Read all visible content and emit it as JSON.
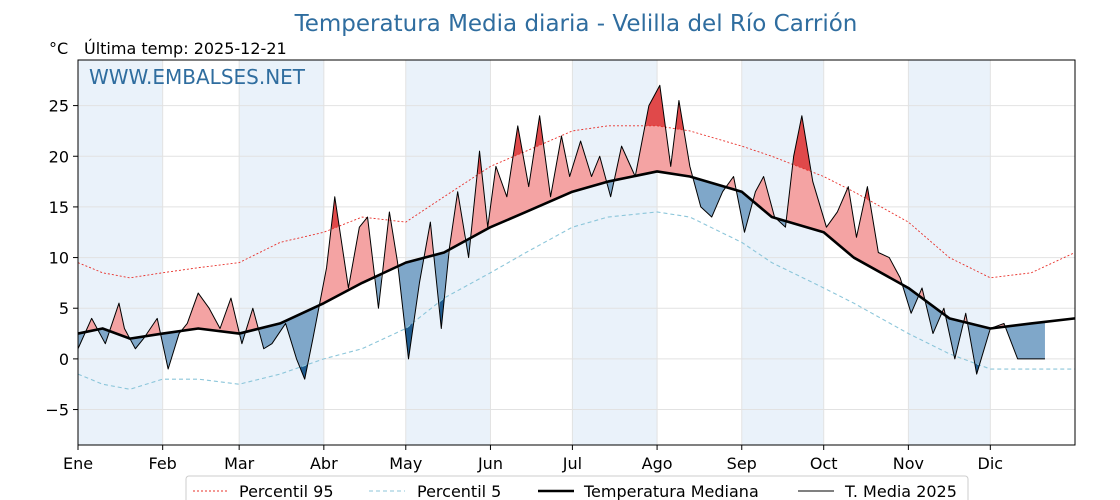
{
  "chart_data": {
    "type": "line",
    "title": "Temperatura Media diaria - Velilla del Río Carrión",
    "subtitle": "Última temp: 2025-12-21",
    "ylabel": "°C",
    "watermark": "WWW.EMBALSES.NET",
    "ylim": [
      -8.5,
      29.5
    ],
    "yticks": [
      -5,
      0,
      5,
      10,
      15,
      20,
      25
    ],
    "ytick_labels": [
      "−5",
      "0",
      "5",
      "10",
      "15",
      "20",
      "25"
    ],
    "xlim": [
      1,
      366
    ],
    "month_ticks": [
      {
        "label": "Ene",
        "day": 1
      },
      {
        "label": "Feb",
        "day": 32
      },
      {
        "label": "Mar",
        "day": 60
      },
      {
        "label": "Abr",
        "day": 91
      },
      {
        "label": "May",
        "day": 121
      },
      {
        "label": "Jun",
        "day": 152
      },
      {
        "label": "Jul",
        "day": 182
      },
      {
        "label": "Ago",
        "day": 213
      },
      {
        "label": "Sep",
        "day": 244
      },
      {
        "label": "Oct",
        "day": 274
      },
      {
        "label": "Nov",
        "day": 305
      },
      {
        "label": "Dic",
        "day": 335
      }
    ],
    "grid": true,
    "legend_position": "bottom",
    "colors": {
      "p95": "#e8302a",
      "p5": "#8cc6da",
      "median": "#000000",
      "current": "#000000",
      "above_fill": "#f4a3a3",
      "above_fill_dark": "#e0494a",
      "below_fill": "#7fa7c9",
      "below_fill_dark": "#1f5b8e",
      "band": "#eaf2fa",
      "title": "#2f6d9f"
    },
    "series": [
      {
        "name": "Percentil 95",
        "key": "p95",
        "style": "dotted",
        "x": [
          1,
          10,
          20,
          32,
          45,
          60,
          75,
          91,
          105,
          121,
          135,
          152,
          165,
          182,
          195,
          213,
          225,
          244,
          255,
          274,
          285,
          305,
          320,
          335,
          350,
          366
        ],
        "y": [
          9.5,
          8.5,
          8,
          8.5,
          9,
          9.5,
          11.5,
          12.5,
          14,
          13.5,
          16,
          19,
          20.5,
          22.5,
          23,
          23,
          22.5,
          21,
          20,
          18,
          16.5,
          13.5,
          10,
          8,
          8.5,
          10.5
        ]
      },
      {
        "name": "Percentil 5",
        "key": "p5",
        "style": "dashed",
        "x": [
          1,
          10,
          20,
          32,
          45,
          60,
          75,
          91,
          105,
          121,
          135,
          152,
          165,
          182,
          195,
          213,
          225,
          244,
          255,
          274,
          285,
          305,
          320,
          335,
          350,
          366
        ],
        "y": [
          -1.5,
          -2.5,
          -3,
          -2,
          -2,
          -2.5,
          -1.5,
          0,
          1,
          3,
          6,
          8.5,
          10.5,
          13,
          14,
          14.5,
          14,
          11.5,
          9.5,
          7,
          5.5,
          2.5,
          0.5,
          -1,
          -1,
          -1
        ]
      },
      {
        "name": "Temperatura Mediana",
        "key": "median",
        "style": "thick",
        "x": [
          1,
          10,
          20,
          32,
          45,
          60,
          75,
          91,
          105,
          121,
          135,
          152,
          165,
          182,
          195,
          213,
          225,
          244,
          255,
          274,
          285,
          305,
          320,
          335,
          350,
          366
        ],
        "y": [
          2.5,
          3,
          2,
          2.5,
          3,
          2.5,
          3.5,
          5.5,
          7.5,
          9.5,
          10.5,
          13,
          14.5,
          16.5,
          17.5,
          18.5,
          18,
          16.5,
          14,
          12.5,
          10,
          7,
          4,
          3,
          3.5,
          4
        ]
      },
      {
        "name": "T. Media 2025",
        "key": "current",
        "style": "thin",
        "x": [
          1,
          6,
          11,
          16,
          18,
          22,
          25,
          30,
          34,
          38,
          41,
          45,
          49,
          53,
          57,
          61,
          65,
          69,
          72,
          77,
          81,
          84,
          87,
          92,
          95,
          100,
          104,
          107,
          111,
          115,
          118,
          122,
          126,
          130,
          134,
          137,
          140,
          144,
          148,
          151,
          154,
          158,
          162,
          166,
          170,
          174,
          178,
          181,
          185,
          189,
          192,
          196,
          200,
          205,
          210,
          214,
          218,
          221,
          225,
          229,
          233,
          237,
          241,
          245,
          249,
          252,
          256,
          260,
          263,
          266,
          270,
          275,
          279,
          283,
          286,
          290,
          294,
          298,
          302,
          306,
          310,
          314,
          318,
          322,
          326,
          330,
          335,
          340,
          345,
          350,
          355
        ],
        "y": [
          1,
          4,
          1.5,
          5.5,
          3,
          1,
          2,
          4,
          -1,
          2.5,
          3.5,
          6.5,
          5,
          3,
          6,
          1.5,
          5,
          1,
          1.5,
          3.5,
          0,
          -2,
          2,
          9,
          16,
          7,
          13,
          14,
          5,
          14.5,
          9.5,
          0,
          7.5,
          13.5,
          3,
          11,
          16.5,
          10,
          20.5,
          13,
          19,
          16,
          23,
          17,
          24,
          16,
          22,
          18,
          21.5,
          18,
          20,
          16,
          21,
          18,
          25,
          27,
          19,
          25.5,
          19,
          15,
          14,
          16.5,
          18,
          12.5,
          16.5,
          18,
          14,
          13,
          20,
          24,
          17.5,
          13,
          14.5,
          17,
          12,
          17,
          10.5,
          10,
          8,
          4.5,
          7,
          2.5,
          5,
          0,
          4.5,
          -1.5,
          3,
          3.5,
          0,
          0,
          0
        ]
      }
    ]
  }
}
